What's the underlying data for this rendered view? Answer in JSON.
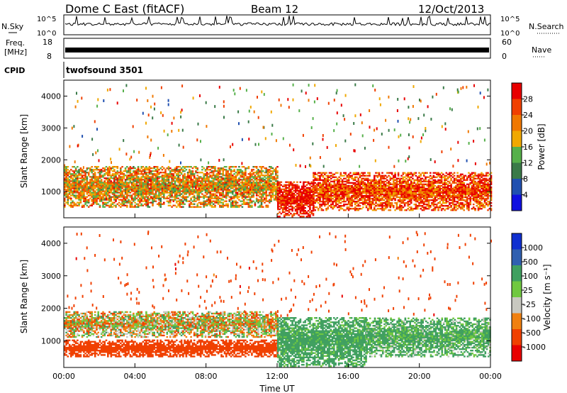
{
  "header": {
    "title": "Dome C East (fitACF)",
    "beam": "Beam 12",
    "date": "12/Oct/2013"
  },
  "sky_panel": {
    "left_label": "N.Sky",
    "left_ticks": [
      "10^5",
      "10^0"
    ],
    "right_label": "N.Search",
    "right_ticks": [
      "10^5",
      "10^0"
    ]
  },
  "freq_panel": {
    "left_label_1": "Freq.",
    "left_label_2": "[MHz]",
    "left_ticks": [
      "18",
      "8"
    ],
    "right_label": "Nave",
    "right_ticks": [
      "60",
      "0"
    ]
  },
  "cpid": {
    "label": "CPID",
    "text": "twofsound 3501"
  },
  "colors": {
    "power_scale": [
      "#1010e0",
      "#2050b0",
      "#3a7a48",
      "#56b04a",
      "#f0a800",
      "#f07800",
      "#f04000",
      "#e80000"
    ],
    "velocity_scale": [
      "#e80000",
      "#f04000",
      "#f08010",
      "#c8c8c0",
      "#70c840",
      "#40a060",
      "#3060b0",
      "#1030d0"
    ]
  },
  "chart_data": [
    {
      "type": "heatmap",
      "panel": "power",
      "ylabel": "Slant Range [km]",
      "y_ticks": [
        "1000",
        "2000",
        "3000",
        "4000"
      ],
      "ylim": [
        180,
        4500
      ],
      "xlim": [
        "00:00",
        "24:00"
      ],
      "colorbar_label": "Power [dB]",
      "colorbar_ticks": [
        "4",
        "8",
        "12",
        "16",
        "20",
        "24",
        "28"
      ],
      "colorbar_range": [
        0,
        32
      ],
      "features": [
        {
          "time_h": [
            0,
            12
          ],
          "range_km": [
            500,
            1800
          ],
          "dominant_value": 20
        },
        {
          "time_h": [
            12,
            14
          ],
          "range_km": [
            200,
            1300
          ],
          "dominant_value": 30
        },
        {
          "time_h": [
            14,
            24
          ],
          "range_km": [
            400,
            1600
          ],
          "dominant_value": 26
        }
      ]
    },
    {
      "type": "heatmap",
      "panel": "velocity",
      "ylabel": "Slant Range [km]",
      "y_ticks": [
        "1000",
        "2000",
        "3000",
        "4000"
      ],
      "ylim": [
        180,
        4500
      ],
      "xlim": [
        "00:00",
        "24:00"
      ],
      "xlabel": "Time UT",
      "x_ticks": [
        "00:00",
        "04:00",
        "08:00",
        "12:00",
        "16:00",
        "20:00",
        "00:00"
      ],
      "colorbar_label": "Velocity [m s⁻¹]",
      "colorbar_ticks": [
        "1000",
        "500",
        "100",
        "25",
        "-25",
        "-100",
        "-500",
        "-1000"
      ],
      "features": [
        {
          "time_h": [
            0,
            12
          ],
          "range_km": [
            500,
            1000
          ],
          "dominant_value": -300
        },
        {
          "time_h": [
            0,
            12
          ],
          "range_km": [
            1100,
            1900
          ],
          "dominant_value": 0
        },
        {
          "time_h": [
            12,
            17
          ],
          "range_km": [
            200,
            1700
          ],
          "dominant_value": 200
        },
        {
          "time_h": [
            17,
            24
          ],
          "range_km": [
            500,
            1700
          ],
          "dominant_value": 150
        }
      ]
    }
  ]
}
